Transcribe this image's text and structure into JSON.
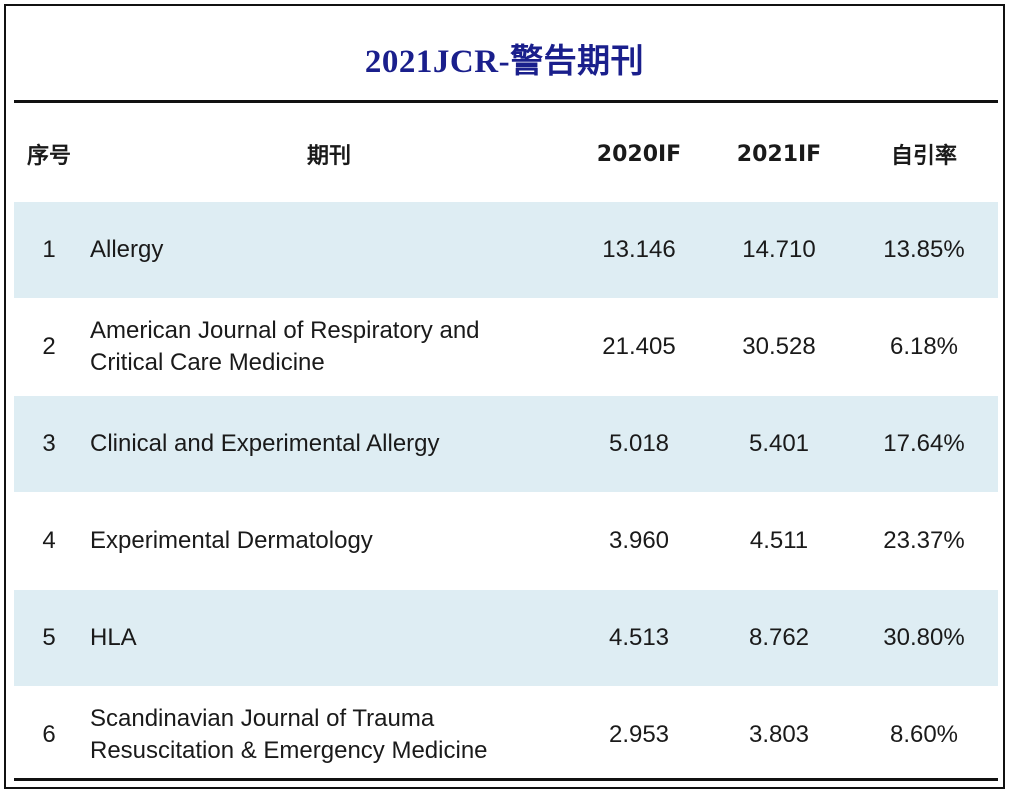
{
  "title": "2021JCR-警告期刊",
  "chart_data": {
    "type": "table",
    "title": "2021JCR-警告期刊",
    "columns": [
      "序号",
      "期刊",
      "2020IF",
      "2021IF",
      "自引率"
    ],
    "rows": [
      {
        "idx": "1",
        "journal": "Allergy",
        "if2020": "13.146",
        "if2021": "14.710",
        "self_citation": "13.85%"
      },
      {
        "idx": "2",
        "journal": "American Journal of Respiratory and Critical Care Medicine",
        "if2020": "21.405",
        "if2021": "30.528",
        "self_citation": "6.18%"
      },
      {
        "idx": "3",
        "journal": "Clinical and Experimental Allergy",
        "if2020": "5.018",
        "if2021": "5.401",
        "self_citation": "17.64%"
      },
      {
        "idx": "4",
        "journal": "Experimental Dermatology",
        "if2020": "3.960",
        "if2021": "4.511",
        "self_citation": "23.37%"
      },
      {
        "idx": "5",
        "journal": "HLA",
        "if2020": "4.513",
        "if2021": "8.762",
        "self_citation": "30.80%"
      },
      {
        "idx": "6",
        "journal": "Scandinavian Journal of Trauma Resuscitation & Emergency Medicine",
        "if2020": "2.953",
        "if2021": "3.803",
        "self_citation": "8.60%"
      }
    ],
    "row_shading": "alternating",
    "shade_color": "#deedf3",
    "title_color": "#1a1f8c"
  }
}
